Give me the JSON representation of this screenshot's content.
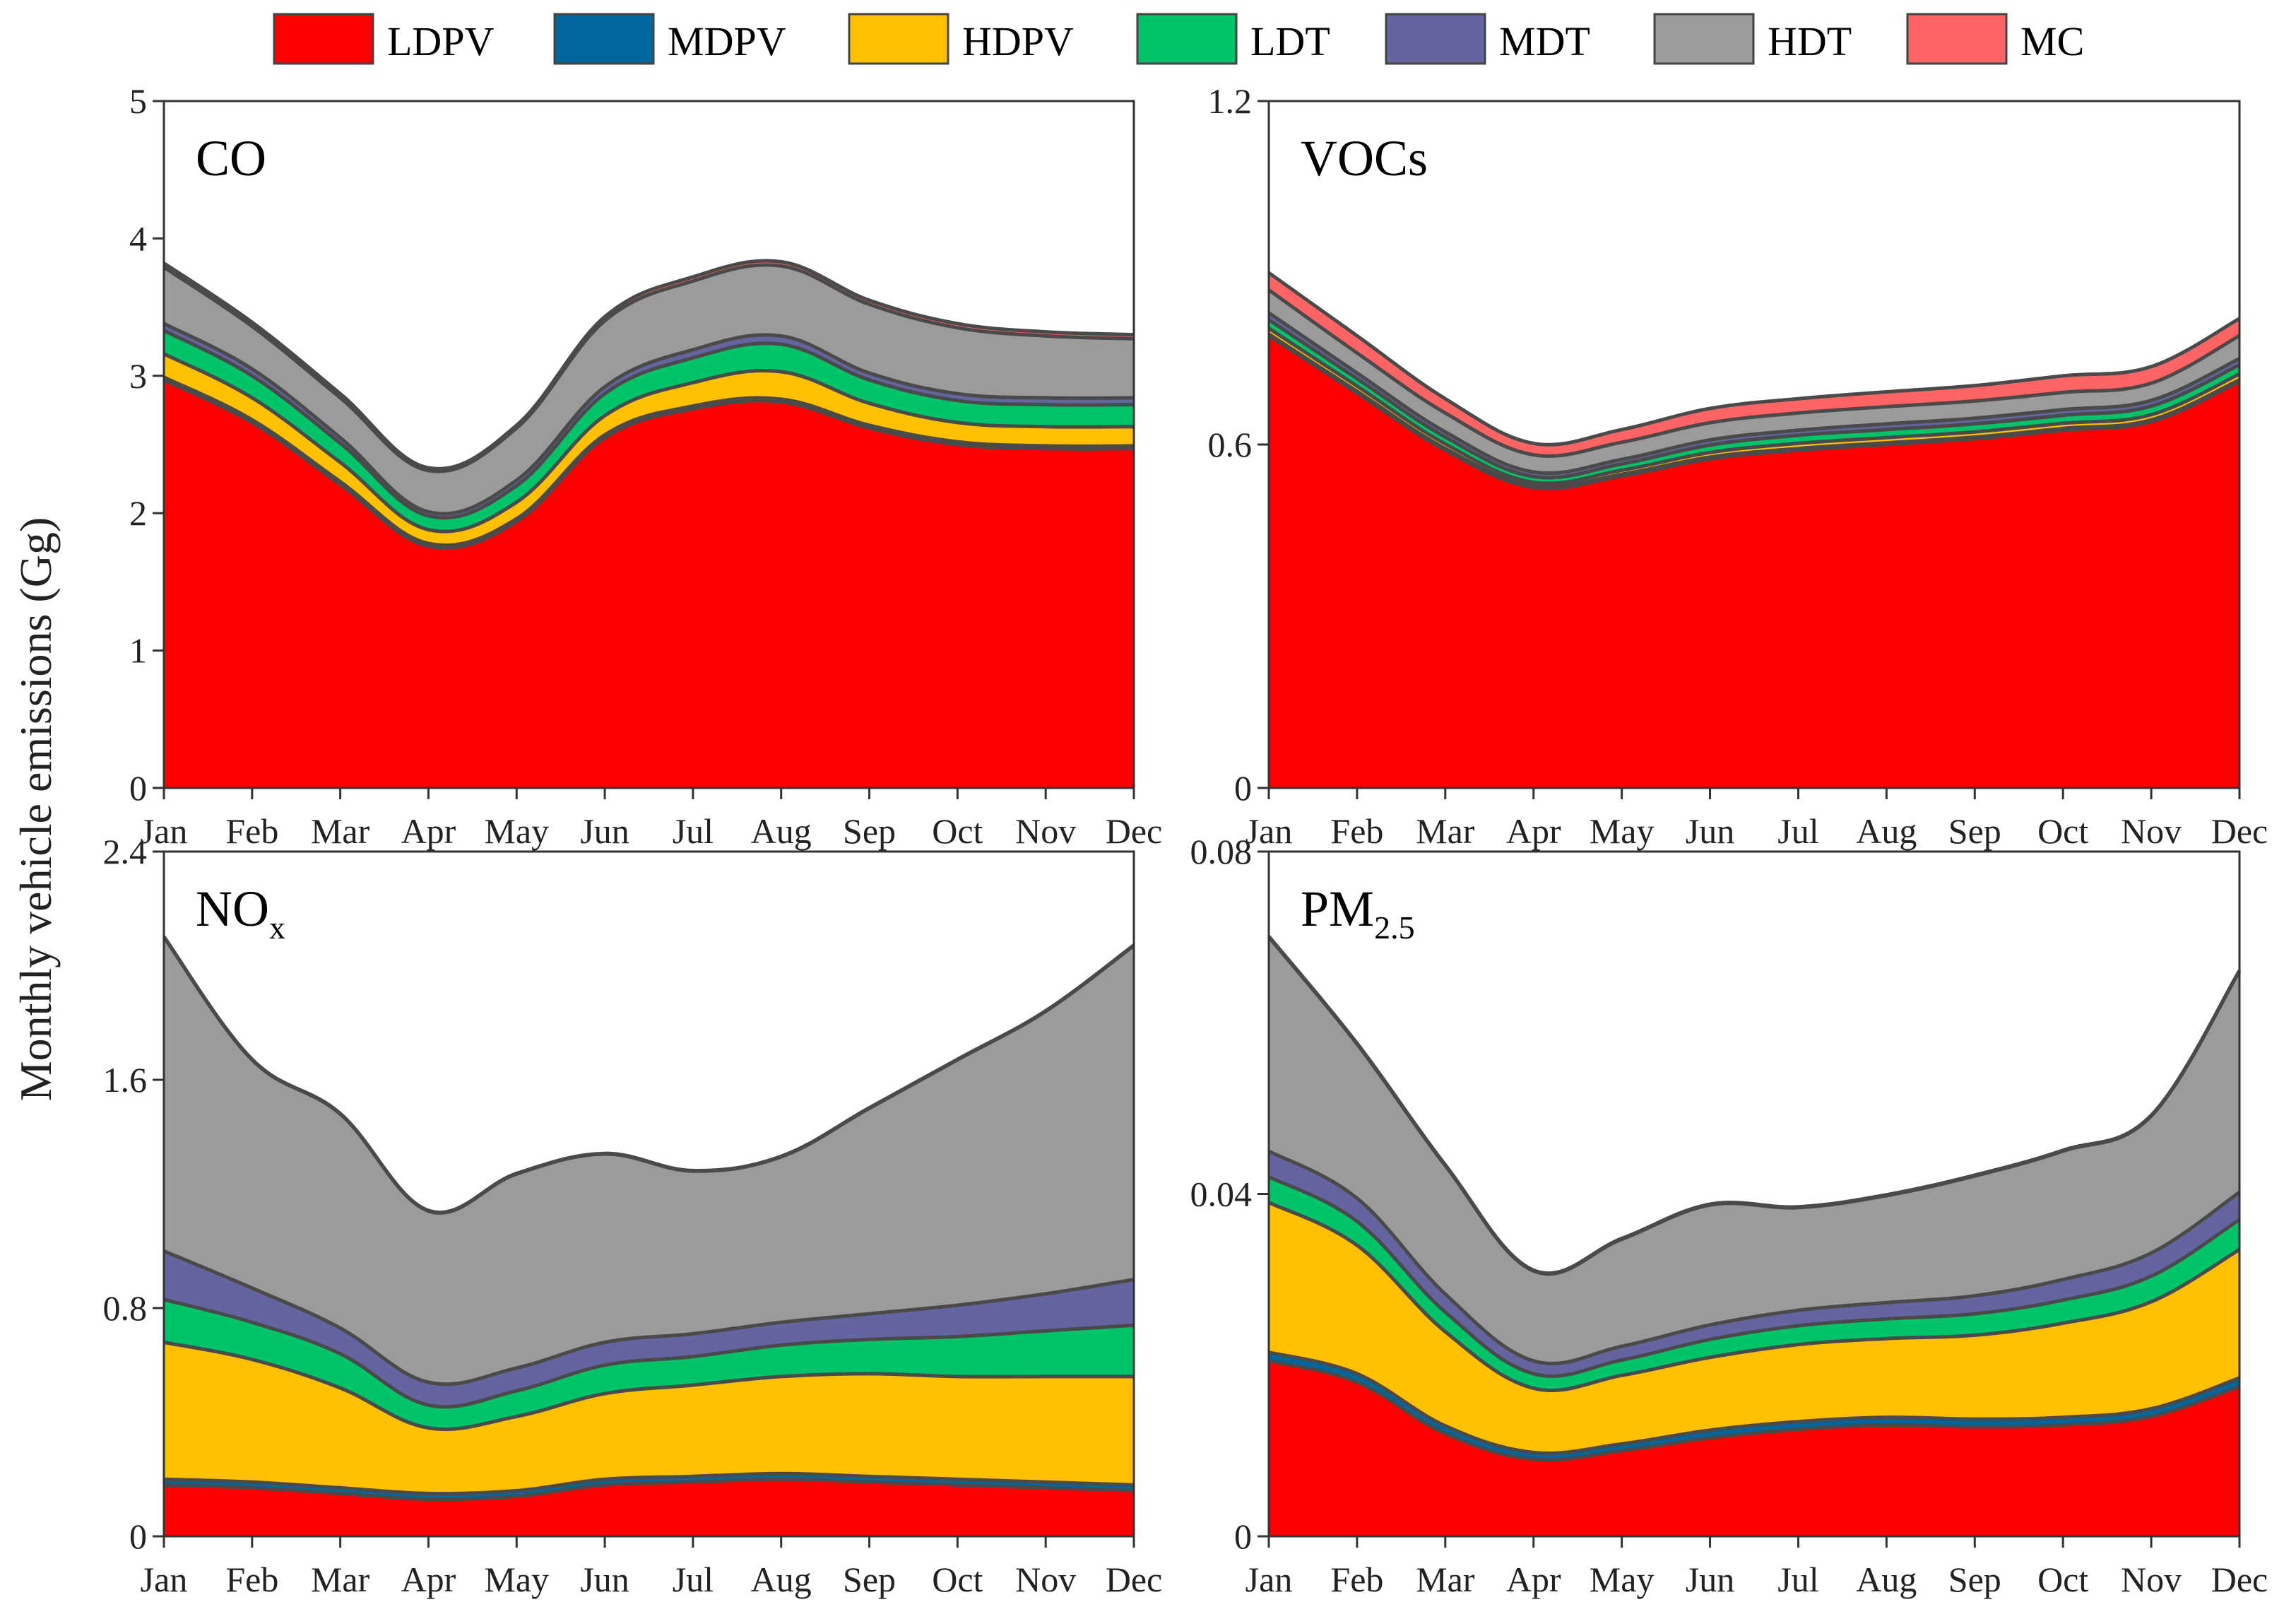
{
  "figure": {
    "ylabel": "Monthly vehicle emissions (Gg)"
  },
  "legend": [
    {
      "name": "LDPV",
      "color": "#ff0000"
    },
    {
      "name": "MDPV",
      "color": "#00669e"
    },
    {
      "name": "HDPV",
      "color": "#ffc000"
    },
    {
      "name": "LDT",
      "color": "#00c46a"
    },
    {
      "name": "MDT",
      "color": "#6464a0"
    },
    {
      "name": "HDT",
      "color": "#9b9b9b"
    },
    {
      "name": "MC",
      "color": "#ff6464"
    }
  ],
  "chart_data": [
    {
      "type": "area",
      "stacked": true,
      "title": "CO",
      "title_sub": "",
      "categories": [
        "Jan",
        "Feb",
        "Mar",
        "Apr",
        "May",
        "Jun",
        "Jul",
        "Aug",
        "Sep",
        "Oct",
        "Nov",
        "Dec"
      ],
      "ylim": [
        0,
        5
      ],
      "yticks": [
        0,
        1,
        2,
        3,
        4,
        5
      ],
      "ytick_labels": [
        "0",
        "1",
        "2",
        "3",
        "4",
        "5"
      ],
      "series": [
        {
          "name": "LDPV",
          "values": [
            2.97,
            2.66,
            2.21,
            1.76,
            1.94,
            2.55,
            2.76,
            2.81,
            2.62,
            2.5,
            2.47,
            2.47
          ]
        },
        {
          "name": "MDPV",
          "values": [
            0.02,
            0.02,
            0.02,
            0.02,
            0.02,
            0.02,
            0.02,
            0.02,
            0.02,
            0.02,
            0.02,
            0.02
          ]
        },
        {
          "name": "HDPV",
          "values": [
            0.17,
            0.16,
            0.14,
            0.1,
            0.12,
            0.14,
            0.17,
            0.2,
            0.16,
            0.14,
            0.14,
            0.14
          ]
        },
        {
          "name": "LDT",
          "values": [
            0.17,
            0.16,
            0.14,
            0.1,
            0.12,
            0.16,
            0.18,
            0.2,
            0.17,
            0.16,
            0.16,
            0.16
          ]
        },
        {
          "name": "MDT",
          "values": [
            0.05,
            0.05,
            0.04,
            0.03,
            0.04,
            0.05,
            0.06,
            0.06,
            0.05,
            0.05,
            0.05,
            0.05
          ]
        },
        {
          "name": "HDT",
          "values": [
            0.41,
            0.31,
            0.29,
            0.3,
            0.38,
            0.48,
            0.5,
            0.51,
            0.5,
            0.48,
            0.45,
            0.43
          ]
        },
        {
          "name": "MC",
          "values": [
            0.03,
            0.03,
            0.03,
            0.02,
            0.02,
            0.03,
            0.03,
            0.03,
            0.03,
            0.03,
            0.03,
            0.03
          ]
        }
      ]
    },
    {
      "type": "area",
      "stacked": true,
      "title": "VOCs",
      "title_sub": "",
      "categories": [
        "Jan",
        "Feb",
        "Mar",
        "Apr",
        "May",
        "Jun",
        "Jul",
        "Aug",
        "Sep",
        "Oct",
        "Nov",
        "Dec"
      ],
      "ylim": [
        0,
        1.2
      ],
      "yticks": [
        0,
        0.6,
        1.2
      ],
      "ytick_labels": [
        "0",
        "0.6",
        "1.2"
      ],
      "series": [
        {
          "name": "LDPV",
          "values": [
            0.79,
            0.69,
            0.59,
            0.525,
            0.545,
            0.575,
            0.59,
            0.6,
            0.61,
            0.625,
            0.64,
            0.71
          ]
        },
        {
          "name": "MDPV",
          "values": [
            0.003,
            0.003,
            0.003,
            0.003,
            0.003,
            0.003,
            0.003,
            0.003,
            0.003,
            0.003,
            0.003,
            0.003
          ]
        },
        {
          "name": "HDPV",
          "values": [
            0.01,
            0.009,
            0.008,
            0.006,
            0.007,
            0.008,
            0.009,
            0.009,
            0.009,
            0.009,
            0.009,
            0.01
          ]
        },
        {
          "name": "LDT",
          "values": [
            0.015,
            0.013,
            0.012,
            0.01,
            0.011,
            0.013,
            0.014,
            0.014,
            0.014,
            0.014,
            0.015,
            0.016
          ]
        },
        {
          "name": "MDT",
          "values": [
            0.012,
            0.01,
            0.009,
            0.008,
            0.008,
            0.009,
            0.009,
            0.01,
            0.01,
            0.01,
            0.01,
            0.011
          ]
        },
        {
          "name": "HDT",
          "values": [
            0.04,
            0.035,
            0.033,
            0.03,
            0.03,
            0.03,
            0.03,
            0.03,
            0.03,
            0.03,
            0.03,
            0.04
          ]
        },
        {
          "name": "MC",
          "values": [
            0.03,
            0.03,
            0.025,
            0.02,
            0.022,
            0.025,
            0.025,
            0.026,
            0.027,
            0.029,
            0.029,
            0.03
          ]
        }
      ]
    },
    {
      "type": "area",
      "stacked": true,
      "title": "NO",
      "title_sub": "x",
      "categories": [
        "Jan",
        "Feb",
        "Mar",
        "Apr",
        "May",
        "Jun",
        "Jul",
        "Aug",
        "Sep",
        "Oct",
        "Nov",
        "Dec"
      ],
      "ylim": [
        0,
        2.4
      ],
      "yticks": [
        0,
        0.8,
        1.6,
        2.4
      ],
      "ytick_labels": [
        "0",
        "0.8",
        "1.6",
        "2.4"
      ],
      "series": [
        {
          "name": "LDPV",
          "values": [
            0.18,
            0.17,
            0.15,
            0.13,
            0.14,
            0.18,
            0.19,
            0.2,
            0.19,
            0.18,
            0.17,
            0.16
          ]
        },
        {
          "name": "MDPV",
          "values": [
            0.02,
            0.02,
            0.02,
            0.02,
            0.02,
            0.02,
            0.02,
            0.02,
            0.02,
            0.02,
            0.02,
            0.02
          ]
        },
        {
          "name": "HDPV",
          "values": [
            0.48,
            0.43,
            0.35,
            0.23,
            0.26,
            0.3,
            0.32,
            0.34,
            0.36,
            0.36,
            0.37,
            0.38
          ]
        },
        {
          "name": "LDT",
          "values": [
            0.15,
            0.13,
            0.12,
            0.08,
            0.09,
            0.1,
            0.1,
            0.11,
            0.12,
            0.14,
            0.16,
            0.18
          ]
        },
        {
          "name": "MDT",
          "values": [
            0.17,
            0.12,
            0.09,
            0.08,
            0.08,
            0.08,
            0.08,
            0.08,
            0.09,
            0.11,
            0.13,
            0.16
          ]
        },
        {
          "name": "HDT",
          "values": [
            1.1,
            0.8,
            0.75,
            0.6,
            0.68,
            0.66,
            0.57,
            0.58,
            0.72,
            0.86,
            0.99,
            1.17
          ]
        },
        {
          "name": "MC",
          "values": [
            0.002,
            0.002,
            0.002,
            0.002,
            0.002,
            0.002,
            0.002,
            0.002,
            0.002,
            0.002,
            0.002,
            0.002
          ]
        }
      ]
    },
    {
      "type": "area",
      "stacked": true,
      "title": "PM",
      "title_sub": "2.5",
      "categories": [
        "Jan",
        "Feb",
        "Mar",
        "Apr",
        "May",
        "Jun",
        "Jul",
        "Aug",
        "Sep",
        "Oct",
        "Nov",
        "Dec"
      ],
      "ylim": [
        0,
        0.08
      ],
      "yticks": [
        0,
        0.04,
        0.08
      ],
      "ytick_labels": [
        "0",
        "0.04",
        "0.08"
      ],
      "series": [
        {
          "name": "LDPV",
          "values": [
            0.0205,
            0.018,
            0.012,
            0.009,
            0.01,
            0.0115,
            0.0125,
            0.013,
            0.0128,
            0.013,
            0.014,
            0.0175
          ]
        },
        {
          "name": "MDPV",
          "values": [
            0.001,
            0.001,
            0.0009,
            0.0008,
            0.0008,
            0.0009,
            0.0009,
            0.0009,
            0.0009,
            0.0009,
            0.0009,
            0.001
          ]
        },
        {
          "name": "HDPV",
          "values": [
            0.0175,
            0.015,
            0.011,
            0.0075,
            0.008,
            0.0085,
            0.009,
            0.0092,
            0.0098,
            0.011,
            0.0125,
            0.015
          ]
        },
        {
          "name": "LDT",
          "values": [
            0.003,
            0.0028,
            0.0023,
            0.0017,
            0.0018,
            0.0021,
            0.0022,
            0.0023,
            0.0025,
            0.0027,
            0.003,
            0.0035
          ]
        },
        {
          "name": "MDT",
          "values": [
            0.003,
            0.0027,
            0.0021,
            0.0015,
            0.0016,
            0.0017,
            0.0018,
            0.0019,
            0.0021,
            0.0024,
            0.0027,
            0.0032
          ]
        },
        {
          "name": "HDT",
          "values": [
            0.025,
            0.018,
            0.015,
            0.0105,
            0.0125,
            0.014,
            0.012,
            0.0125,
            0.014,
            0.015,
            0.016,
            0.0258
          ]
        },
        {
          "name": "MC",
          "values": [
            0.0001,
            0.0001,
            0.0001,
            0.0001,
            0.0001,
            0.0001,
            0.0001,
            0.0001,
            0.0001,
            0.0001,
            0.0001,
            0.0001
          ]
        }
      ]
    }
  ]
}
